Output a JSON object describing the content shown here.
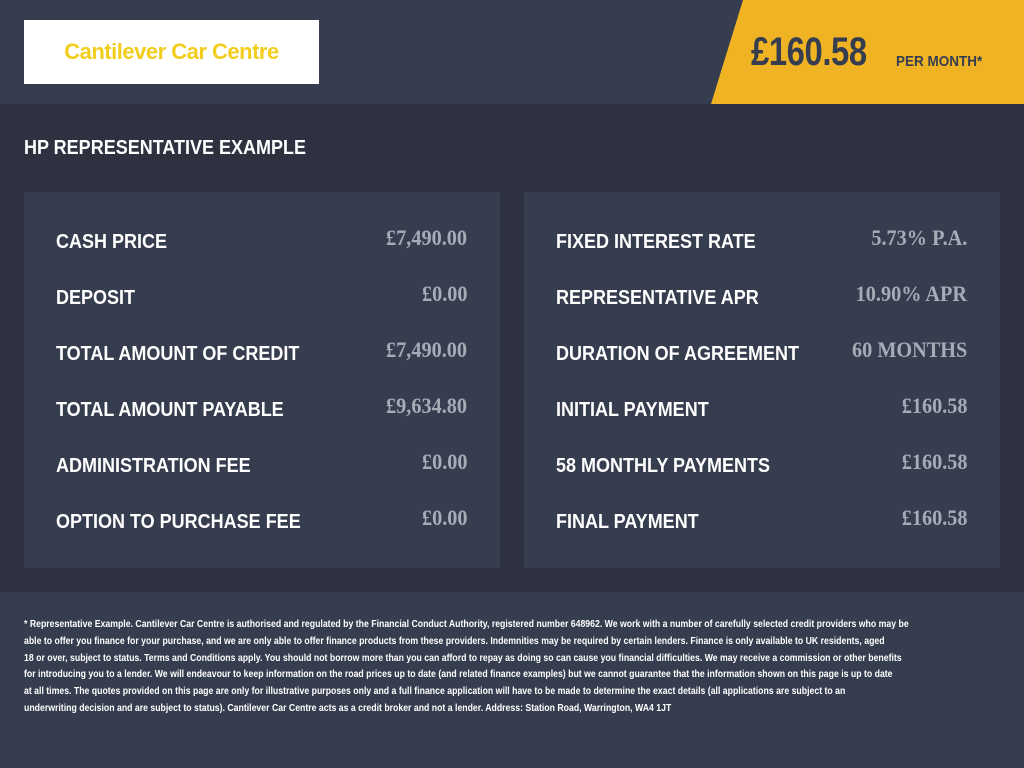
{
  "header": {
    "logo_text": "Cantilever Car Centre",
    "monthly_price": "£160.58",
    "per_month_label": "PER MONTH*",
    "colors": {
      "accent": "#f0b323",
      "logo": "#f2cd1c",
      "background": "#363d4f"
    }
  },
  "section_title": "HP REPRESENTATIVE EXAMPLE",
  "left_panel": [
    {
      "label": "CASH PRICE",
      "value": "£7,490.00"
    },
    {
      "label": "DEPOSIT",
      "value": "£0.00"
    },
    {
      "label": "TOTAL AMOUNT OF CREDIT",
      "value": "£7,490.00"
    },
    {
      "label": "TOTAL AMOUNT PAYABLE",
      "value": "£9,634.80"
    },
    {
      "label": "ADMINISTRATION FEE",
      "value": "£0.00"
    },
    {
      "label": "OPTION TO PURCHASE FEE",
      "value": "£0.00"
    }
  ],
  "right_panel": [
    {
      "label": "FIXED INTEREST RATE",
      "value": "5.73% P.A."
    },
    {
      "label": "REPRESENTATIVE APR",
      "value": "10.90% APR"
    },
    {
      "label": "DURATION OF AGREEMENT",
      "value": "60 MONTHS"
    },
    {
      "label": "INITIAL PAYMENT",
      "value": "£160.58"
    },
    {
      "label": "58 MONTHLY PAYMENTS",
      "value": "£160.58"
    },
    {
      "label": "FINAL PAYMENT",
      "value": "£160.58"
    }
  ],
  "disclaimer_lines": [
    "* Representative Example. Cantilever Car Centre is authorised and regulated by the Financial Conduct Authority, registered number 648962. We work with a number of carefully selected credit providers who may be",
    "able to offer you finance for your purchase, and we are only able to offer finance products from these providers. Indemnities may be required by certain lenders. Finance is only available to UK residents, aged",
    "18 or over, subject to status. Terms and Conditions apply. You should not borrow more than you can afford to repay as doing so can cause you financial difficulties. We may receive a commission or other benefits",
    "for introducing you to a lender. We will endeavour to keep information on the road prices up to date (and related finance examples) but we cannot guarantee that the information shown on this page is up to date",
    "at all times. The quotes provided on this page are only for illustrative purposes only and a full finance application will have to be made to determine the exact details (all applications are subject to an",
    "underwriting decision and are subject to status). Cantilever Car Centre acts as a credit broker and not a lender. Address: Station Road, Warrington, WA4 1JT"
  ]
}
